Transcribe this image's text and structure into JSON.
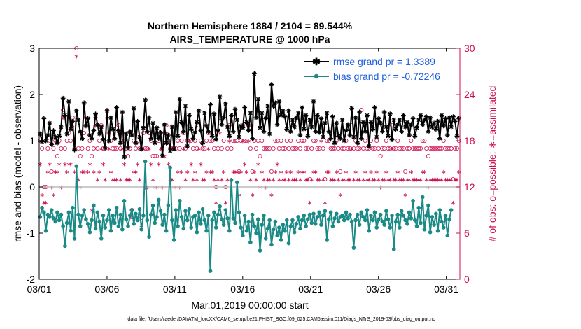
{
  "chart_data": {
    "type": "line",
    "title": "Northern Hemisphere 1884 / 2104 = 89.544%",
    "subtitle": "AIRS_TEMPERATURE @ 1000 hPa",
    "xlabel": "Mar.01,2019 00:00:00 start",
    "ylabel": "rmse and bias (model - observation)",
    "ylabel_right": "# of obs: o=possible; ∗=assimilated",
    "footnote": "data file: /Users/raeder/DAI/ATM_forcXX/CAM6_setup/f.e21.FHIST_BGC.f09_025.CAM6assim.011/Diags_NTrS_2019-03/obs_diag_output.nc",
    "x_ticks": [
      "03/01",
      "03/06",
      "03/11",
      "03/16",
      "03/21",
      "03/26",
      "03/31"
    ],
    "x_tick_days": [
      1,
      6,
      11,
      16,
      21,
      26,
      31
    ],
    "xlim": [
      1,
      32
    ],
    "ylim": [
      -2,
      3
    ],
    "y_ticks": [
      "-2",
      "-1",
      "0",
      "1",
      "2",
      "3"
    ],
    "y2lim": [
      0,
      30
    ],
    "y2_ticks": [
      "0",
      "6",
      "12",
      "18",
      "24",
      "30"
    ],
    "series": [
      {
        "name": "rmse",
        "legend": "rmse grand pr = 1.3389",
        "color": "#000000",
        "values": [
          1.15,
          0.98,
          1.48,
          1.0,
          1.12,
          1.38,
          0.92,
          1.22,
          1.08,
          0.95,
          1.1,
          1.3,
          1.92,
          1.55,
          1.15,
          1.85,
          1.25,
          1.42,
          0.8,
          1.65,
          1.45,
          1.2,
          1.05,
          1.82,
          1.32,
          1.48,
          1.12,
          1.05,
          1.22,
          1.58,
          1.35,
          1.15,
          1.3,
          1.02,
          0.85,
          1.65,
          1.0,
          1.5,
          1.25,
          1.05,
          1.72,
          1.22,
          0.95,
          1.62,
          0.65,
          1.15,
          0.85,
          1.2,
          1.12,
          1.7,
          0.95,
          1.42,
          1.08,
          0.82,
          1.28,
          1.88,
          1.2,
          1.5,
          1.05,
          1.38,
          0.95,
          1.28,
          1.05,
          1.18,
          0.68,
          1.35,
          0.95,
          1.12,
          0.78,
          1.3,
          0.82,
          1.62,
          1.1,
          1.9,
          1.4,
          1.2,
          1.75,
          0.88,
          1.55,
          1.25,
          1.05,
          1.18,
          1.4,
          1.65,
          1.22,
          0.95,
          1.6,
          1.32,
          1.2,
          1.78,
          1.1,
          1.58,
          1.02,
          1.22,
          1.95,
          1.35,
          1.5,
          1.8,
          1.3,
          1.1,
          1.55,
          1.2,
          1.68,
          1.45,
          1.08,
          1.32,
          1.28,
          1.72,
          1.4,
          1.22,
          1.6,
          1.05,
          2.45,
          1.5,
          1.9,
          1.28,
          1.6,
          1.2,
          1.48,
          1.75,
          1.15,
          2.22,
          1.75,
          1.82,
          1.35,
          1.85,
          1.55,
          1.65,
          1.52,
          1.25,
          1.65,
          1.2,
          1.45,
          1.3,
          1.5,
          1.6,
          1.12,
          1.72,
          1.25,
          1.55,
          1.1,
          1.45,
          1.3,
          1.85,
          1.2,
          1.55,
          1.18,
          1.48,
          1.08,
          1.38,
          1.6,
          1.2,
          1.05,
          1.52,
          0.95,
          1.38,
          1.1,
          1.05,
          1.45,
          1.0,
          1.22,
          1.35,
          1.12,
          1.7,
          1.08,
          1.5,
          0.95,
          1.62,
          1.05,
          1.4,
          1.2,
          1.55,
          0.88,
          1.4,
          1.25,
          1.72,
          1.08,
          1.48,
          1.38,
          1.2,
          1.62,
          1.3,
          1.1,
          1.58,
          1.02,
          1.45,
          1.25,
          1.35,
          1.45,
          1.2,
          1.55,
          1.3,
          1.4,
          1.12,
          1.35,
          1.48,
          1.1,
          1.28,
          1.45,
          1.55,
          1.35,
          1.45,
          1.52,
          1.2,
          1.5,
          1.3,
          1.38,
          1.25,
          1.42,
          1.05,
          1.55,
          1.32,
          1.48,
          1.12,
          1.5,
          1.3,
          1.52,
          1.42,
          1.1,
          1.48
        ]
      },
      {
        "name": "bias",
        "legend": "bias grand pr = -0.72246",
        "color": "#1a8a87",
        "values": [
          -0.65,
          -0.45,
          -0.55,
          -0.95,
          -0.6,
          -0.65,
          -0.5,
          -0.68,
          -0.75,
          -0.55,
          -0.72,
          -0.6,
          -0.85,
          -1.28,
          -0.78,
          -0.55,
          -0.95,
          -0.45,
          -1.12,
          0.45,
          -0.6,
          -0.85,
          -0.62,
          -0.5,
          -0.7,
          -0.8,
          -0.98,
          -0.72,
          -0.4,
          -0.9,
          -0.55,
          -0.75,
          -1.12,
          -0.62,
          -0.88,
          -0.72,
          -0.5,
          -0.95,
          -0.62,
          -0.78,
          -0.45,
          -0.85,
          -0.6,
          -0.92,
          -0.3,
          -0.7,
          -0.85,
          -0.62,
          -0.5,
          -0.8,
          -0.58,
          -0.72,
          -0.48,
          -0.92,
          -0.62,
          0.55,
          -0.72,
          -1.08,
          -0.6,
          -0.4,
          -0.78,
          -0.65,
          -0.28,
          -0.52,
          -0.82,
          -0.6,
          -0.95,
          -0.4,
          0.42,
          -0.72,
          -1.15,
          -0.5,
          -0.85,
          -0.3,
          -0.65,
          -0.9,
          -0.52,
          -0.72,
          -0.48,
          -0.88,
          -0.65,
          -0.62,
          -0.98,
          -0.55,
          -0.8,
          -0.48,
          -0.72,
          -0.95,
          -0.62,
          -1.82,
          -0.72,
          -0.55,
          -0.88,
          -0.6,
          -0.42,
          -0.7,
          -0.82,
          -0.5,
          -0.68,
          -0.95,
          0.15,
          -0.68,
          -0.78,
          0.1,
          -0.55,
          -0.88,
          -1.05,
          -0.62,
          -0.95,
          -0.75,
          -1.2,
          -0.6,
          -0.85,
          -1.0,
          -0.7,
          -1.38,
          -0.82,
          -0.62,
          -1.12,
          -0.9,
          -0.72,
          -1.25,
          -0.92,
          -0.75,
          -1.05,
          -0.88,
          -1.15,
          -0.82,
          -0.95,
          -0.72,
          -1.22,
          -0.85,
          -0.72,
          -0.98,
          -0.8,
          -0.65,
          -0.9,
          -0.72,
          -0.62,
          -0.85,
          -0.7,
          -0.6,
          -0.78,
          -0.58,
          -0.8,
          -0.65,
          -0.55,
          -0.82,
          -0.62,
          -0.52,
          -1.15,
          -0.7,
          -0.55,
          -0.85,
          -0.68,
          -0.58,
          -0.75,
          -0.65,
          -0.62,
          -0.72,
          -0.55,
          -0.68,
          -0.6,
          -0.75,
          -1.32,
          -0.72,
          -0.6,
          -0.82,
          -0.55,
          -0.65,
          -0.72,
          -0.5,
          -0.95,
          -0.62,
          -0.72,
          -0.55,
          -0.88,
          -0.7,
          -0.6,
          -0.75,
          -0.82,
          -0.52,
          -0.7,
          -0.88,
          -0.62,
          -1.35,
          -0.75,
          -0.6,
          -0.88,
          -0.52,
          -0.62,
          -0.72,
          -0.8,
          -0.55,
          -0.68,
          -0.3,
          -0.72,
          -0.85,
          -0.45,
          -0.78,
          -0.22,
          -0.92,
          -0.62,
          -0.4,
          -0.98,
          -0.65,
          -0.82,
          -0.58,
          -0.95,
          -0.5,
          -0.75,
          -0.88,
          -0.62,
          -1.05,
          -0.7,
          -0.5
        ]
      }
    ],
    "possible_obs": [
      18,
      17,
      12,
      12,
      17,
      18,
      14,
      17,
      18,
      16,
      18,
      17,
      22,
      17,
      18,
      19,
      18,
      21,
      17,
      30,
      17,
      16,
      17,
      19,
      21,
      17,
      18,
      16,
      17,
      21,
      17,
      18,
      20,
      17,
      17,
      22,
      19,
      18,
      17,
      17,
      17,
      20,
      17,
      19,
      18,
      17,
      16,
      17,
      9,
      18,
      17,
      18,
      17,
      8,
      19,
      17,
      17,
      19,
      18,
      16,
      16,
      16,
      18,
      19,
      17,
      19,
      20,
      18,
      17,
      17,
      17,
      17,
      18,
      17,
      18,
      19,
      17,
      18,
      20,
      18,
      17,
      18,
      17,
      20,
      18,
      17,
      17,
      18,
      19,
      18,
      18,
      17,
      12,
      17,
      21,
      17,
      18,
      12,
      17,
      20,
      17,
      18,
      18,
      18,
      14,
      18,
      20,
      18,
      18,
      20,
      17,
      14,
      18,
      17,
      18,
      16,
      18,
      17,
      17,
      17,
      17,
      14,
      17,
      18,
      18,
      17,
      18,
      17,
      17,
      18,
      17,
      18,
      17,
      17,
      17,
      18,
      17,
      18,
      18,
      17,
      17,
      13,
      17,
      18,
      18,
      17,
      17,
      20,
      17,
      13,
      18,
      18,
      17,
      17,
      17,
      18,
      17,
      14,
      17,
      17,
      18,
      17,
      17,
      20,
      17,
      18,
      17,
      17,
      22,
      17,
      18,
      17,
      17,
      18,
      17,
      17,
      18,
      17,
      16,
      17,
      17,
      18,
      17,
      17,
      20,
      17,
      17,
      18,
      17,
      17,
      17,
      14,
      17,
      17,
      18,
      17,
      17,
      17,
      17,
      17,
      18,
      18,
      17,
      16,
      17,
      17,
      17,
      17,
      17,
      17,
      17,
      18,
      17,
      17,
      17,
      17,
      13,
      17,
      17,
      18
    ],
    "assimilated_obs": [
      15,
      11,
      10,
      10,
      14,
      15,
      12,
      11,
      14,
      14,
      15,
      12,
      21,
      15,
      14,
      15,
      15,
      20,
      14,
      29,
      13,
      12,
      14,
      14,
      20,
      14,
      15,
      9,
      14,
      20,
      13,
      14,
      17,
      15,
      13,
      21,
      17,
      14,
      13,
      13,
      13,
      19,
      13,
      17,
      15,
      13,
      13,
      13,
      8,
      14,
      14,
      15,
      13,
      7,
      17,
      12,
      12,
      17,
      15,
      13,
      12,
      12,
      15,
      17,
      12,
      16,
      19,
      15,
      13,
      13,
      12,
      12,
      14,
      12,
      14,
      17,
      13,
      14,
      18,
      15,
      13,
      14,
      13,
      17,
      15,
      13,
      13,
      14,
      17,
      14,
      14,
      13,
      10,
      13,
      19,
      13,
      14,
      10,
      13,
      18,
      13,
      14,
      14,
      14,
      11,
      14,
      18,
      15,
      14,
      18,
      13,
      11,
      14,
      13,
      15,
      12,
      14,
      13,
      12,
      13,
      13,
      11,
      13,
      14,
      15,
      13,
      14,
      13,
      13,
      14,
      13,
      14,
      13,
      13,
      13,
      14,
      13,
      14,
      14,
      13,
      13,
      10,
      13,
      14,
      14,
      13,
      13,
      18,
      13,
      10,
      14,
      14,
      13,
      13,
      13,
      14,
      13,
      11,
      13,
      13,
      14,
      13,
      13,
      17,
      13,
      14,
      13,
      13,
      19,
      13,
      14,
      13,
      13,
      14,
      13,
      13,
      14,
      13,
      12,
      13,
      13,
      14,
      13,
      13,
      17,
      13,
      13,
      14,
      13,
      13,
      13,
      11,
      13,
      13,
      14,
      13,
      13,
      13,
      13,
      13,
      14,
      14,
      13,
      12,
      13,
      13,
      13,
      13,
      13,
      13,
      13,
      14,
      13,
      13,
      13,
      13,
      10,
      13,
      13,
      14
    ],
    "colors": {
      "rmse": "#000000",
      "bias": "#1a8a87",
      "obs": "#cc1050",
      "legend_text": "#1f5fe0",
      "zero_line": "#bbbbbb"
    }
  }
}
